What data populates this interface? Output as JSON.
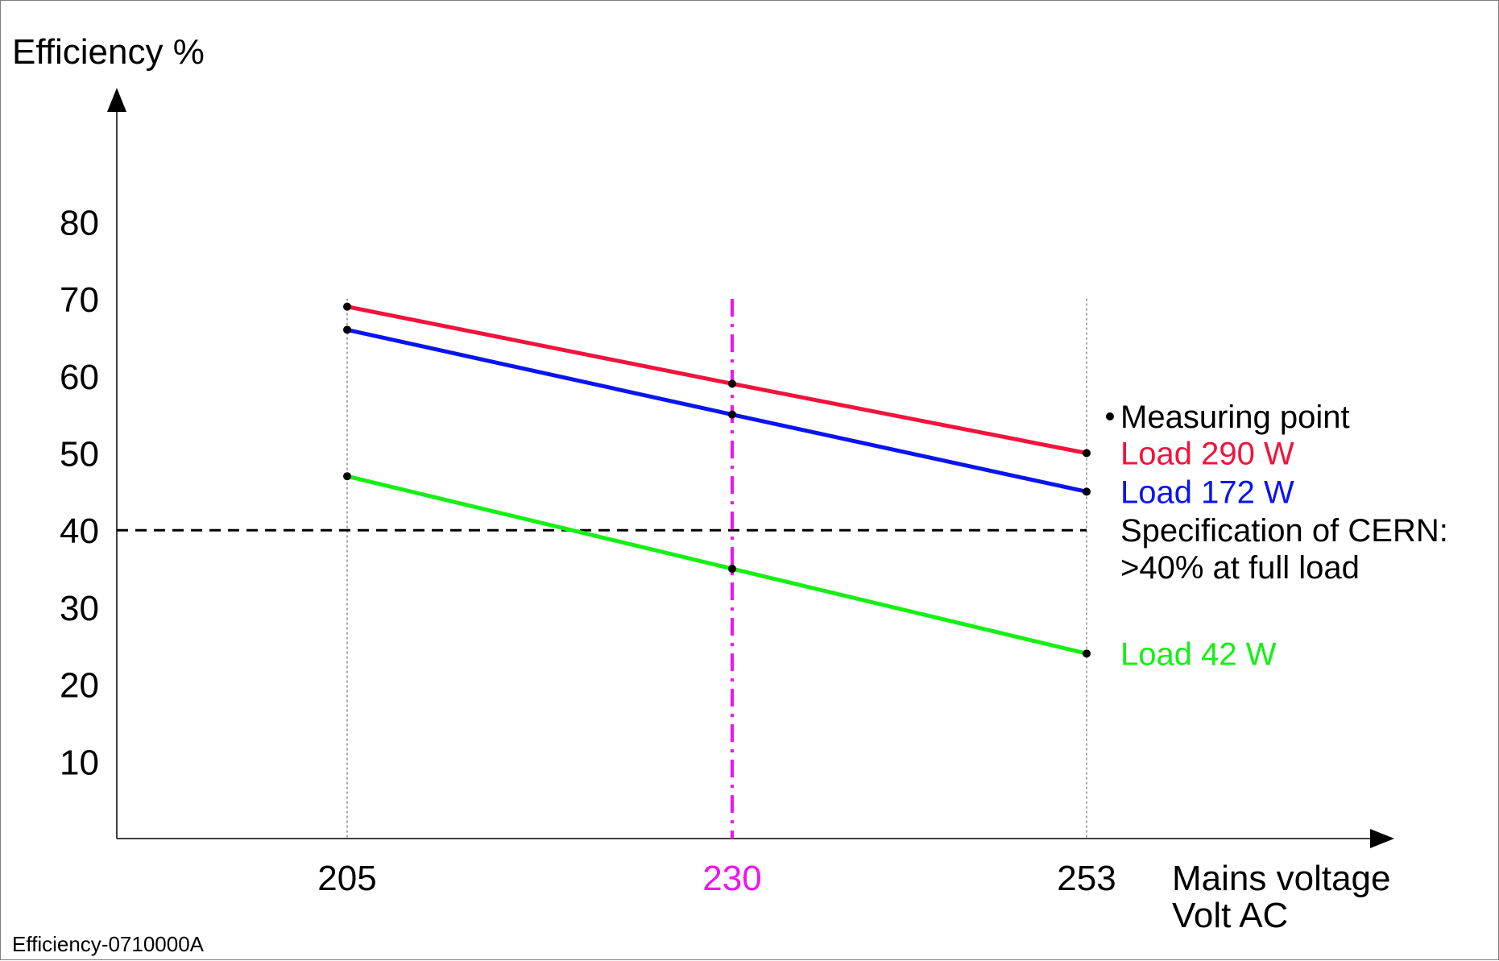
{
  "chart_data": {
    "type": "line",
    "ylabel": "Efficiency %",
    "xlabel": [
      "Mains voltage",
      "Volt AC"
    ],
    "x": [
      205,
      230,
      253
    ],
    "x_tick_labels": [
      "205",
      "230",
      "253"
    ],
    "highlight_x": 230,
    "y_ticks": [
      10,
      20,
      30,
      40,
      50,
      60,
      70,
      80
    ],
    "ylim": [
      0,
      80
    ],
    "series": [
      {
        "name": "Load 290 W",
        "color": "#f0143c",
        "values": [
          69,
          59,
          50
        ]
      },
      {
        "name": "Load 172 W",
        "color": "#0a14f0",
        "values": [
          66,
          55,
          45
        ]
      },
      {
        "name": "Load 42 W",
        "color": "#14f014",
        "values": [
          47,
          35,
          24
        ]
      }
    ],
    "reference_line": {
      "y": 40,
      "label_lines": [
        "Specification of CERN:",
        ">40% at full load"
      ]
    },
    "marker_legend": "Measuring point",
    "highlight_color": "#f014f0",
    "figure_id": "Efficiency-0710000A"
  }
}
